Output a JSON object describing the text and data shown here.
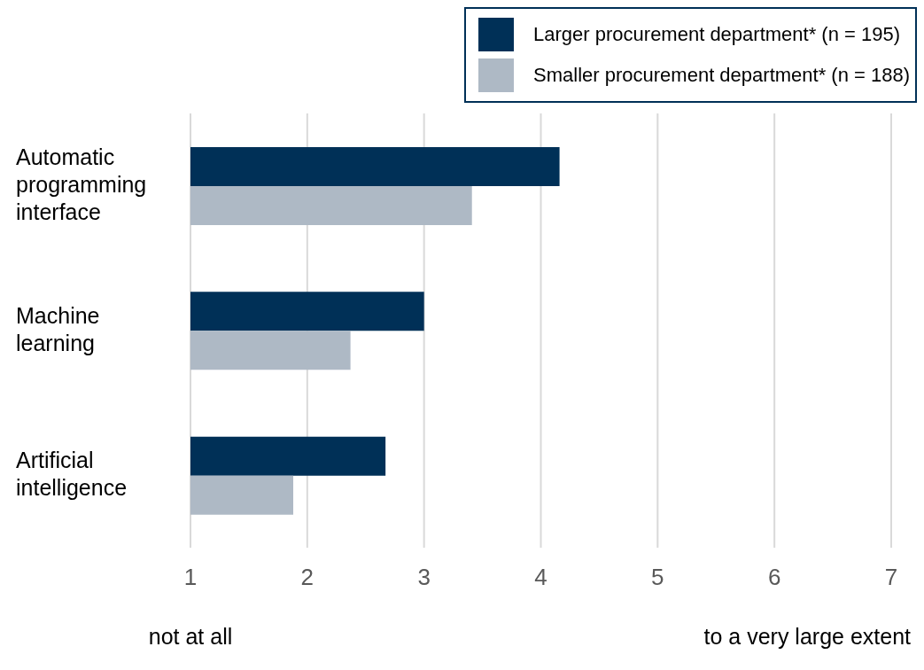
{
  "chart_data": {
    "type": "bar",
    "orientation": "horizontal",
    "categories": [
      "Automatic programming interface",
      "Machine learning",
      "Artificial intelligence"
    ],
    "series": [
      {
        "name": "Larger procurement department* (n = 195)",
        "color": "#003057",
        "values": [
          4.16,
          3.0,
          2.67
        ]
      },
      {
        "name": "Smaller procurement department* (n = 188)",
        "color": "#aeb9c5",
        "values": [
          3.41,
          2.37,
          1.88
        ]
      }
    ],
    "xlim": [
      1,
      7
    ],
    "xticks": [
      1,
      2,
      3,
      4,
      5,
      6,
      7
    ],
    "grid": "x",
    "legend": "top right",
    "annotations": [
      "not at all",
      "to a very large extent"
    ]
  }
}
